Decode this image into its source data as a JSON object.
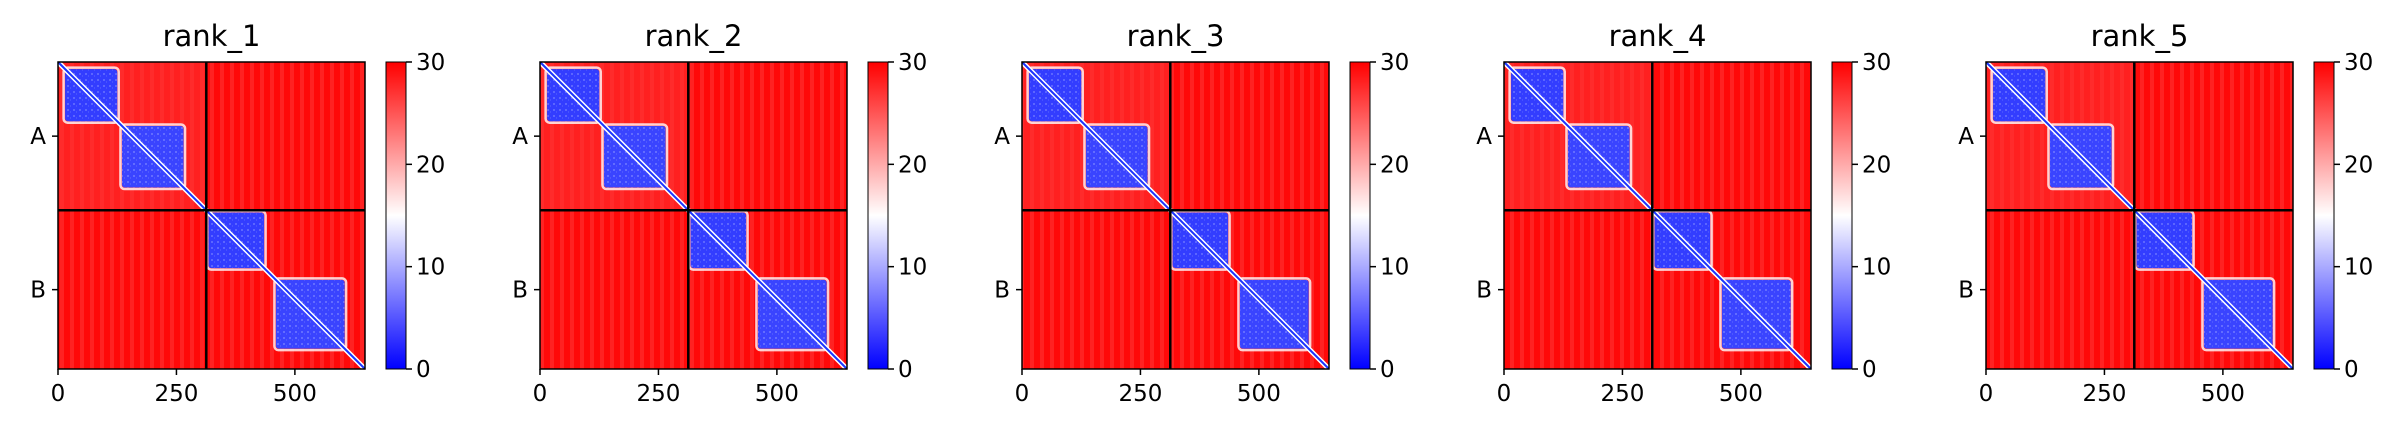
{
  "chart_data": {
    "type": "heatmap",
    "description_kind": "predicted aligned error matrices",
    "chains": [
      "A",
      "B"
    ],
    "chain_lengths": [
      313,
      335
    ],
    "total_residues": 648,
    "xticks": [
      0,
      250,
      500
    ],
    "xtick_labels": [
      "0",
      "250",
      "500"
    ],
    "colorbar": {
      "min": 0,
      "max": 30,
      "ticks": [
        0,
        10,
        20,
        30
      ],
      "tick_labels": [
        "0",
        "10",
        "20",
        "30"
      ],
      "colormap": "bwr",
      "low_color": "#0000ff",
      "mid_color": "#ffffff",
      "high_color": "#ff0000"
    },
    "domains": [
      {
        "start": 15,
        "end": 125,
        "value": 3
      },
      {
        "start": 135,
        "end": 265,
        "value": 4
      },
      {
        "start": 318,
        "end": 435,
        "value": 3
      },
      {
        "start": 460,
        "end": 605,
        "value": 4
      }
    ],
    "background_value": 29.5,
    "intrachain_offdomain_value": 27,
    "panels": [
      {
        "title": "rank_1"
      },
      {
        "title": "rank_2"
      },
      {
        "title": "rank_3"
      },
      {
        "title": "rank_4"
      },
      {
        "title": "rank_5"
      }
    ]
  }
}
